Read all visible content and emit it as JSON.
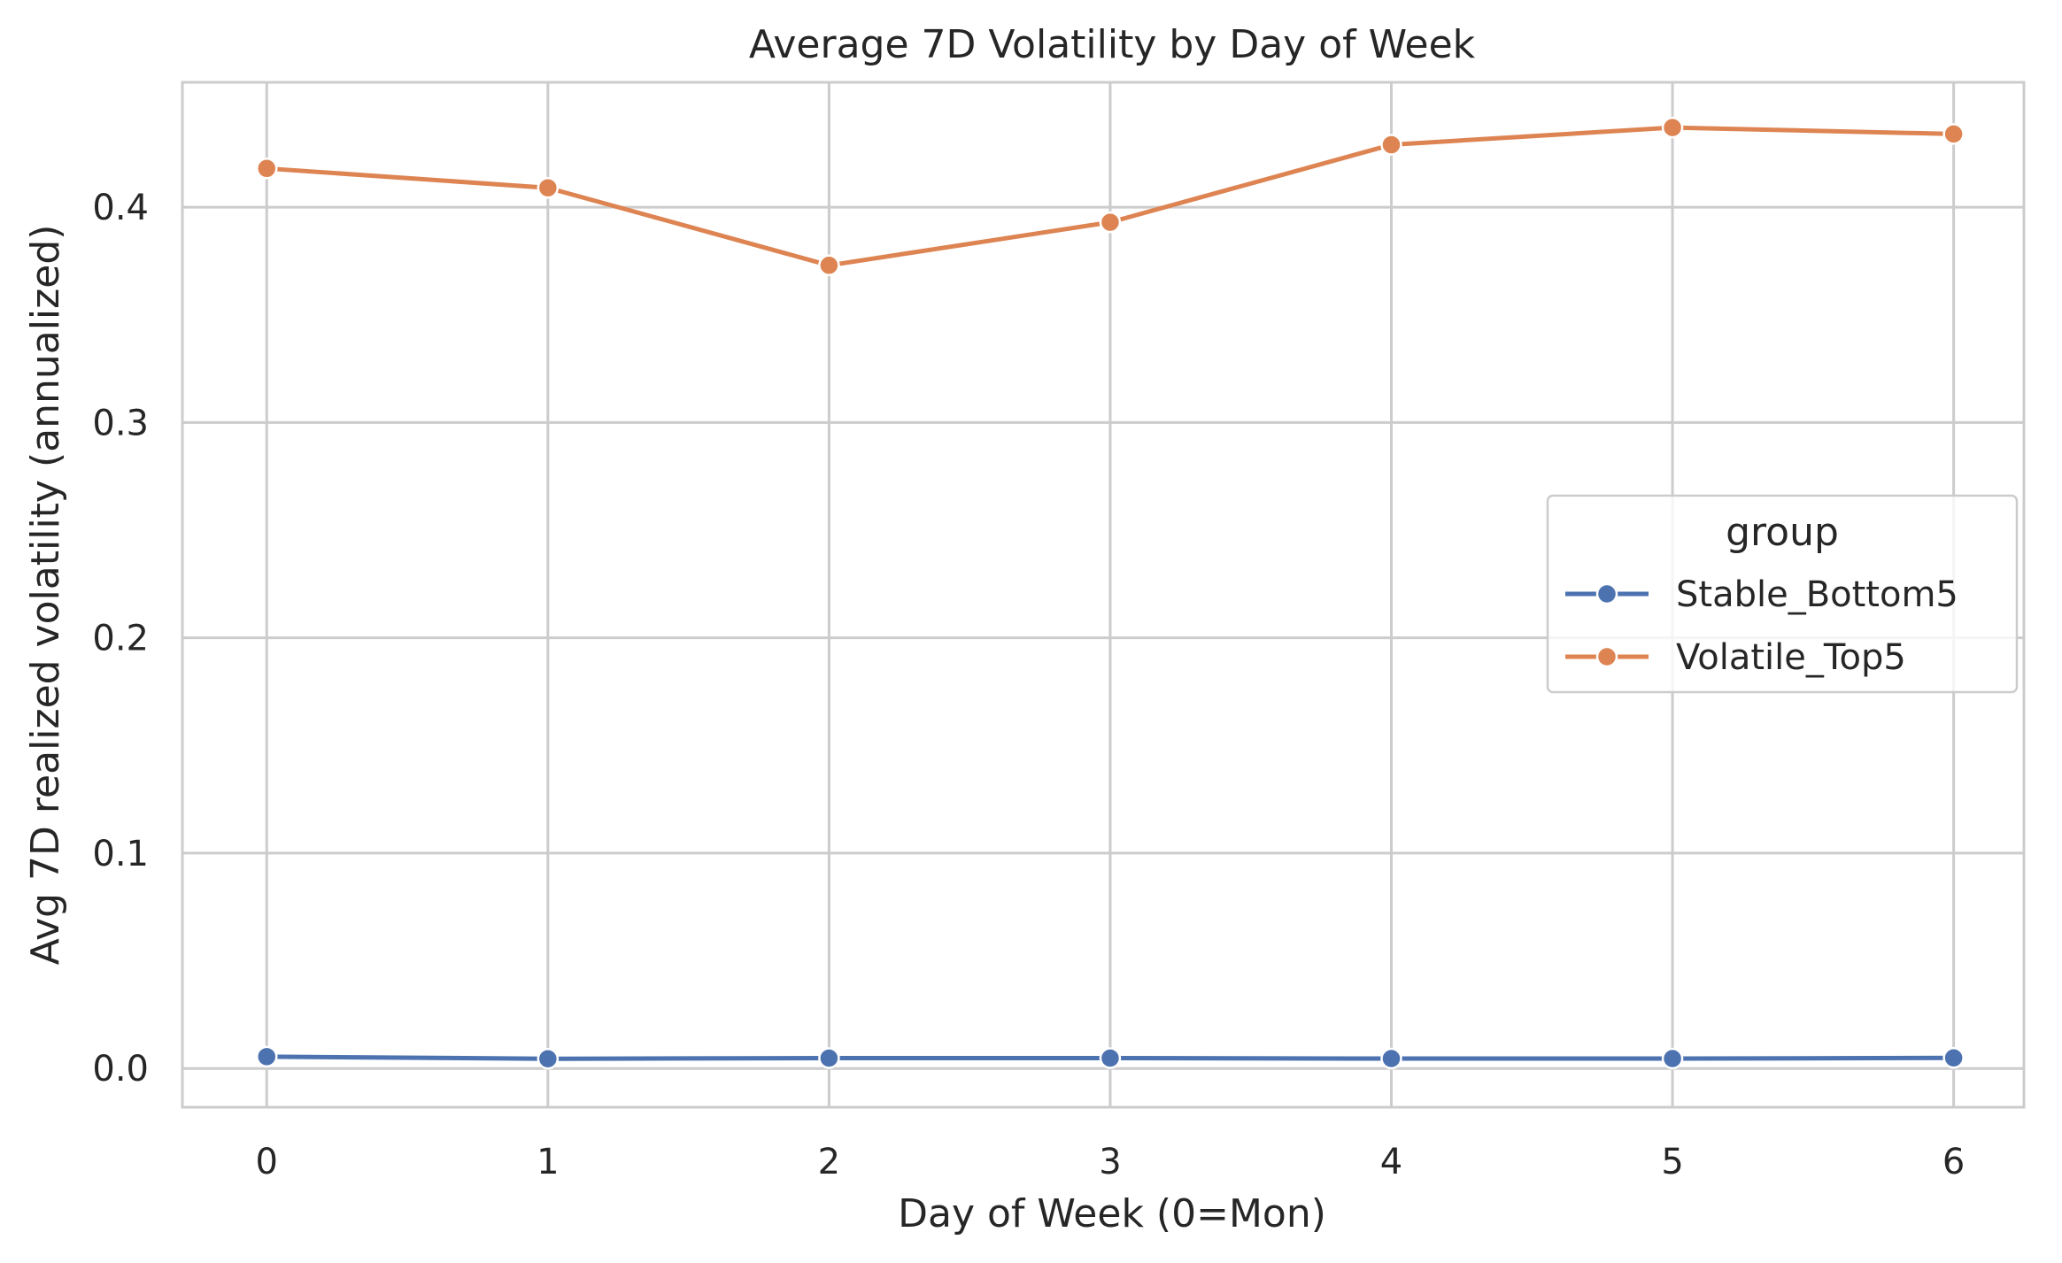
{
  "chart_data": {
    "type": "line",
    "title": "Average 7D Volatility by Day of Week",
    "xlabel": "Day of Week (0=Mon)",
    "ylabel": "Avg 7D realized volatility (annualized)",
    "x": [
      0,
      1,
      2,
      3,
      4,
      5,
      6
    ],
    "x_tick_labels": [
      "0",
      "1",
      "2",
      "3",
      "4",
      "5",
      "6"
    ],
    "y_ticks": [
      0.0,
      0.1,
      0.2,
      0.3,
      0.4
    ],
    "y_tick_labels": [
      "0.0",
      "0.1",
      "0.2",
      "0.3",
      "0.4"
    ],
    "xlim": [
      -0.3,
      6.25
    ],
    "ylim": [
      -0.018,
      0.458
    ],
    "grid": true,
    "legend": {
      "title": "group",
      "position": "center-right"
    },
    "series": [
      {
        "name": "Stable_Bottom5",
        "color": "#4c72b0",
        "values": [
          0.0055,
          0.0045,
          0.0048,
          0.0048,
          0.0046,
          0.0046,
          0.0049
        ]
      },
      {
        "name": "Volatile_Top5",
        "color": "#dd8452",
        "values": [
          0.418,
          0.409,
          0.373,
          0.393,
          0.429,
          0.437,
          0.434
        ]
      }
    ]
  }
}
